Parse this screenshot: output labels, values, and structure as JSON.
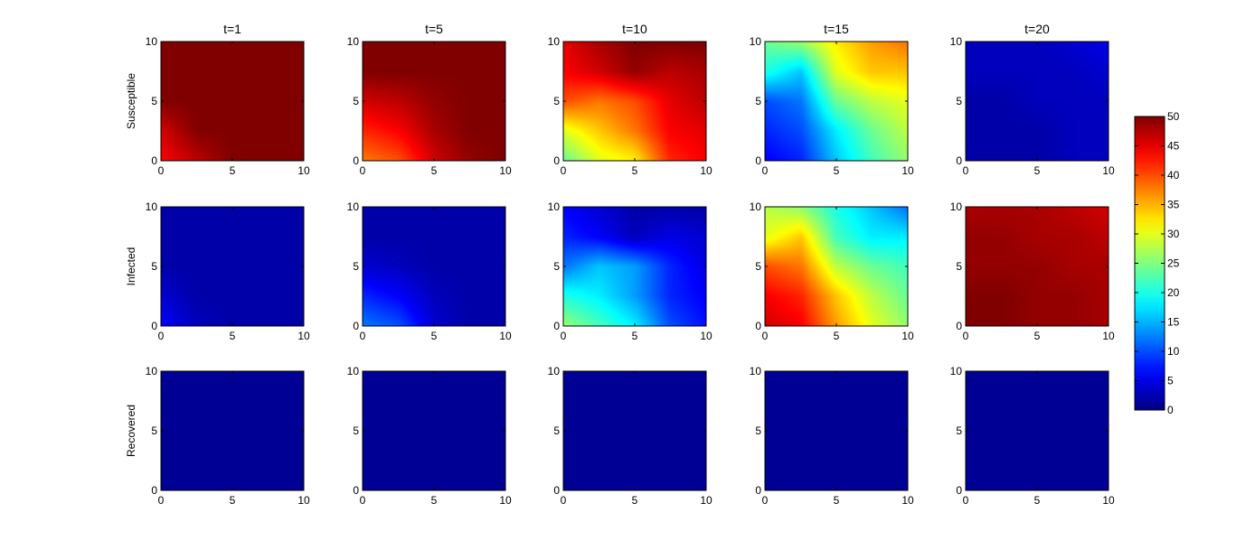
{
  "chart_data": {
    "type": "heatmap",
    "layout": {
      "rows": 3,
      "cols": 5
    },
    "row_labels": [
      "Susceptible",
      "Infected",
      "Recovered"
    ],
    "column_titles": [
      "t=1",
      "t=5",
      "t=10",
      "t=15",
      "t=20"
    ],
    "xlim": [
      0,
      10
    ],
    "ylim": [
      0,
      10
    ],
    "x_ticks": [
      "0",
      "5",
      "10"
    ],
    "y_ticks": [
      "0",
      "5",
      "10"
    ],
    "colormap": "jet",
    "colorbar": {
      "range": [
        0,
        50
      ],
      "ticks": [
        "0",
        "5",
        "10",
        "15",
        "20",
        "25",
        "30",
        "35",
        "40",
        "45",
        "50"
      ],
      "placement": "right"
    },
    "grid": false,
    "panel_values": [
      [
        [
          [
            50,
            50,
            50,
            50,
            50
          ],
          [
            50,
            50,
            50,
            50,
            50
          ],
          [
            50,
            50,
            50,
            50,
            50
          ],
          [
            46,
            50,
            50,
            50,
            50
          ],
          [
            44,
            47,
            50,
            50,
            50
          ]
        ],
        [
          [
            50,
            50,
            50,
            50,
            50
          ],
          [
            50,
            50,
            50,
            50,
            50
          ],
          [
            46,
            47,
            49,
            50,
            50
          ],
          [
            42,
            44,
            48,
            50,
            50
          ],
          [
            38,
            40,
            46,
            49,
            50
          ]
        ],
        [
          [
            45,
            48,
            50,
            50,
            50
          ],
          [
            44,
            46,
            49,
            47,
            48
          ],
          [
            40,
            38,
            40,
            45,
            47
          ],
          [
            30,
            34,
            38,
            44,
            45
          ],
          [
            24,
            30,
            32,
            42,
            44
          ]
        ],
        [
          [
            24,
            26,
            32,
            36,
            38
          ],
          [
            20,
            16,
            30,
            34,
            34
          ],
          [
            10,
            12,
            24,
            28,
            30
          ],
          [
            8,
            10,
            18,
            24,
            28
          ],
          [
            6,
            8,
            16,
            22,
            26
          ]
        ],
        [
          [
            3,
            3,
            3,
            4,
            5
          ],
          [
            3,
            3,
            3,
            3,
            4
          ],
          [
            2,
            2,
            3,
            3,
            3
          ],
          [
            2,
            2,
            2,
            3,
            3
          ],
          [
            2,
            2,
            2,
            3,
            3
          ]
        ]
      ],
      [
        [
          [
            2,
            2,
            2,
            2,
            2
          ],
          [
            2,
            2,
            2,
            2,
            2
          ],
          [
            2,
            2,
            2,
            2,
            2
          ],
          [
            4,
            2,
            2,
            2,
            2
          ],
          [
            6,
            3,
            2,
            2,
            2
          ]
        ],
        [
          [
            2,
            2,
            2,
            2,
            2
          ],
          [
            2,
            2,
            2,
            2,
            2
          ],
          [
            4,
            3,
            2,
            2,
            2
          ],
          [
            8,
            6,
            3,
            2,
            2
          ],
          [
            12,
            10,
            4,
            2,
            2
          ]
        ],
        [
          [
            6,
            4,
            2,
            2,
            2
          ],
          [
            8,
            6,
            3,
            5,
            4
          ],
          [
            12,
            16,
            14,
            8,
            5
          ],
          [
            20,
            18,
            14,
            8,
            6
          ],
          [
            26,
            22,
            18,
            10,
            7
          ]
        ],
        [
          [
            28,
            26,
            20,
            16,
            12
          ],
          [
            30,
            34,
            22,
            18,
            18
          ],
          [
            40,
            38,
            28,
            24,
            22
          ],
          [
            44,
            42,
            34,
            28,
            24
          ],
          [
            46,
            44,
            36,
            30,
            26
          ]
        ],
        [
          [
            48,
            48,
            48,
            47,
            46
          ],
          [
            49,
            49,
            48,
            48,
            47
          ],
          [
            49,
            49,
            49,
            48,
            48
          ],
          [
            50,
            50,
            49,
            49,
            48
          ],
          [
            50,
            50,
            49,
            49,
            48
          ]
        ]
      ],
      [
        [
          [
            1,
            1,
            1,
            1,
            1
          ],
          [
            1,
            1,
            1,
            1,
            1
          ],
          [
            1,
            1,
            1,
            1,
            1
          ],
          [
            1,
            1,
            1,
            1,
            1
          ],
          [
            1,
            1,
            1,
            1,
            1
          ]
        ],
        [
          [
            1,
            1,
            1,
            1,
            1
          ],
          [
            1,
            1,
            1,
            1,
            1
          ],
          [
            1,
            1,
            1,
            1,
            1
          ],
          [
            1,
            1,
            1,
            1,
            1
          ],
          [
            1,
            1,
            1,
            1,
            1
          ]
        ],
        [
          [
            1,
            1,
            1,
            1,
            1
          ],
          [
            1,
            1,
            1,
            1,
            1
          ],
          [
            1,
            1,
            1,
            1,
            1
          ],
          [
            1,
            1,
            1,
            1,
            1
          ],
          [
            1,
            1,
            1,
            1,
            1
          ]
        ],
        [
          [
            1,
            1,
            1,
            1,
            1
          ],
          [
            1,
            1,
            1,
            1,
            1
          ],
          [
            1,
            1,
            1,
            1,
            1
          ],
          [
            1,
            1,
            1,
            1,
            1
          ],
          [
            1,
            1,
            1,
            1,
            1
          ]
        ],
        [
          [
            1,
            1,
            1,
            1,
            1
          ],
          [
            1,
            1,
            1,
            1,
            1
          ],
          [
            1,
            1,
            1,
            1,
            1
          ],
          [
            1,
            1,
            1,
            1,
            1
          ],
          [
            1,
            1,
            1,
            1,
            1
          ]
        ]
      ]
    ]
  }
}
